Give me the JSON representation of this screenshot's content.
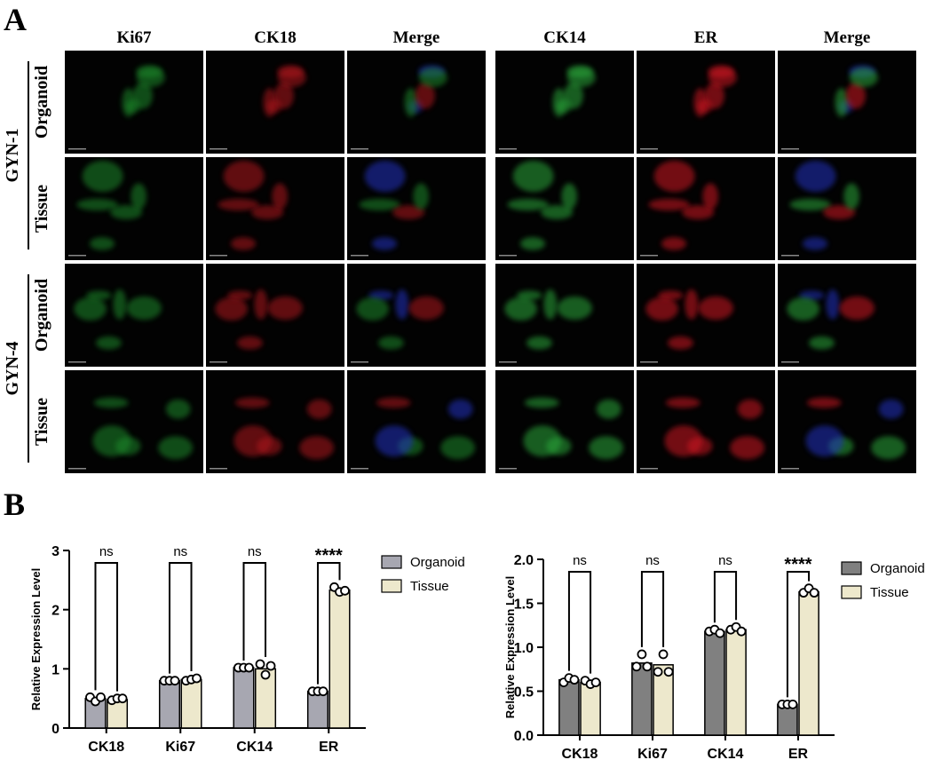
{
  "panel_a": {
    "label": "A",
    "left_headers": [
      "Ki67",
      "CK18",
      "Merge"
    ],
    "right_headers": [
      "CK14",
      "ER",
      "Merge"
    ],
    "groups": [
      {
        "name": "GYN-1",
        "rows": [
          "Organoid",
          "Tissue"
        ]
      },
      {
        "name": "GYN-4",
        "rows": [
          "Organoid",
          "Tissue"
        ]
      }
    ]
  },
  "panel_b": {
    "label": "B"
  },
  "chart_data": [
    {
      "type": "bar",
      "y_label": "Relative Expression Level",
      "categories": [
        "CK18",
        "Ki67",
        "CK14",
        "ER"
      ],
      "ylim": [
        0,
        3
      ],
      "yticks": [
        0,
        1,
        2,
        3
      ],
      "annotations": [
        "ns",
        "ns",
        "ns",
        "****"
      ],
      "series": [
        {
          "name": "Organoid",
          "color": "#a7a7b1",
          "values": [
            0.5,
            0.8,
            1.02,
            0.62
          ],
          "points": [
            [
              0.52,
              0.45,
              0.52
            ],
            [
              0.8,
              0.8,
              0.8
            ],
            [
              1.02,
              1.02,
              1.02
            ],
            [
              0.62,
              0.62,
              0.62
            ]
          ]
        },
        {
          "name": "Tissue",
          "color": "#ede8cc",
          "values": [
            0.48,
            0.82,
            1.0,
            2.33
          ],
          "points": [
            [
              0.47,
              0.5,
              0.5
            ],
            [
              0.8,
              0.82,
              0.84
            ],
            [
              1.08,
              0.9,
              1.05
            ],
            [
              2.38,
              2.3,
              2.32
            ]
          ]
        }
      ]
    },
    {
      "type": "bar",
      "y_label": "Relative Expression Level",
      "categories": [
        "CK18",
        "Ki67",
        "CK14",
        "ER"
      ],
      "ylim": [
        0,
        2
      ],
      "yticks": [
        {
          "value": 0,
          "label": "0.0"
        },
        {
          "value": 0.5,
          "label": "0.5"
        },
        {
          "value": 1,
          "label": "1.0"
        },
        {
          "value": 1.5,
          "label": "1.5"
        },
        {
          "value": 2,
          "label": "2.0"
        }
      ],
      "annotations": [
        "ns",
        "ns",
        "ns",
        "****"
      ],
      "series": [
        {
          "name": "Organoid",
          "color": "#808080",
          "values": [
            0.63,
            0.82,
            1.18,
            0.35
          ],
          "points": [
            [
              0.6,
              0.65,
              0.63
            ],
            [
              0.78,
              0.92,
              0.78
            ],
            [
              1.18,
              1.2,
              1.16
            ],
            [
              0.35,
              0.35,
              0.35
            ]
          ]
        },
        {
          "name": "Tissue",
          "color": "#ede8cc",
          "values": [
            0.6,
            0.8,
            1.2,
            1.63
          ],
          "points": [
            [
              0.62,
              0.58,
              0.6
            ],
            [
              0.72,
              0.92,
              0.72
            ],
            [
              1.2,
              1.23,
              1.18
            ],
            [
              1.62,
              1.67,
              1.62
            ]
          ]
        }
      ]
    }
  ]
}
